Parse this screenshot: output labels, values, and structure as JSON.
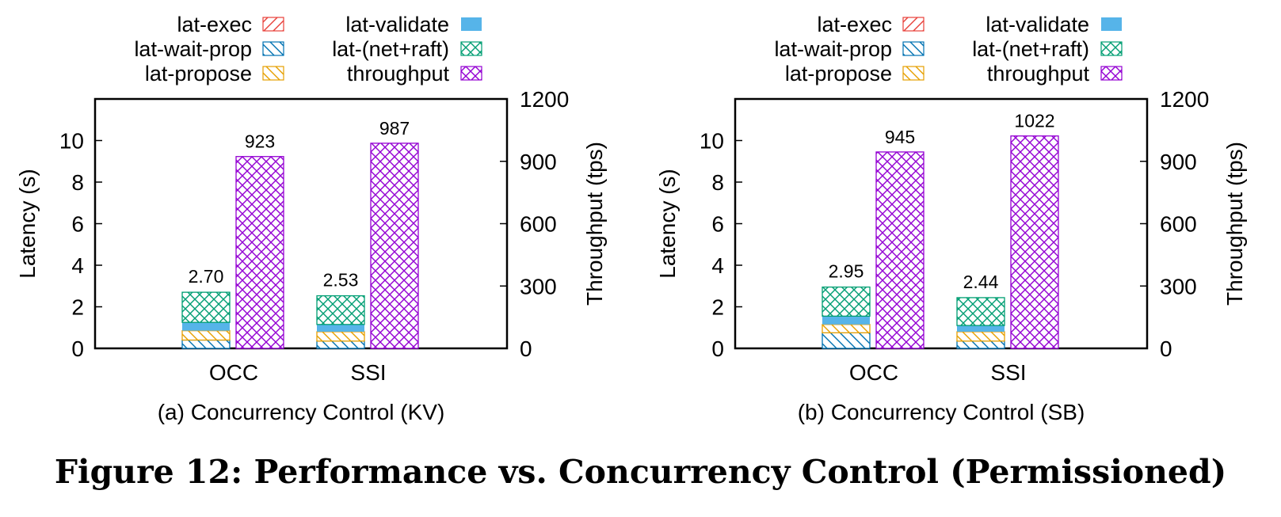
{
  "figure_caption": "Figure 12: Performance vs. Concurrency Control (Permissioned)",
  "legend": [
    {
      "key": "lat_exec",
      "label": "lat-exec",
      "color": "#e8403a",
      "pattern": "diag-right"
    },
    {
      "key": "lat_validate",
      "label": "lat-validate",
      "color": "#56b4e9",
      "pattern": "solid"
    },
    {
      "key": "lat_wait_prop",
      "label": "lat-wait-prop",
      "color": "#0072b2",
      "pattern": "diag-left"
    },
    {
      "key": "lat_net_raft",
      "label": "lat-(net+raft)",
      "color": "#009e73",
      "pattern": "crosshatch"
    },
    {
      "key": "lat_propose",
      "label": "lat-propose",
      "color": "#e69f00",
      "pattern": "diag-left"
    },
    {
      "key": "throughput",
      "label": "throughput",
      "color": "#9400d3",
      "pattern": "crosshatch"
    }
  ],
  "chart_data": [
    {
      "type": "bar",
      "subcaption": "(a) Concurrency Control (KV)",
      "categories": [
        "OCC",
        "SSI"
      ],
      "ylabel": "Latency (s)",
      "y2label": "Throughput (tps)",
      "ylim": [
        0,
        12
      ],
      "y2lim": [
        0,
        1200
      ],
      "yticks": [
        0,
        2,
        4,
        6,
        8,
        10
      ],
      "y2ticks": [
        0,
        300,
        600,
        900,
        1200
      ],
      "latency_series": [
        {
          "name": "lat-wait-prop",
          "values": [
            0.4,
            0.35
          ]
        },
        {
          "name": "lat-propose",
          "values": [
            0.45,
            0.45
          ]
        },
        {
          "name": "lat-exec",
          "values": [
            0.0,
            0.0
          ]
        },
        {
          "name": "lat-validate",
          "values": [
            0.4,
            0.35
          ]
        },
        {
          "name": "lat-(net+raft)",
          "values": [
            1.45,
            1.38
          ]
        }
      ],
      "latency_total": [
        2.7,
        2.53
      ],
      "latency_labels": [
        "2.70",
        "2.53"
      ],
      "throughput": [
        923,
        987
      ],
      "throughput_labels": [
        "923",
        "987"
      ]
    },
    {
      "type": "bar",
      "subcaption": "(b) Concurrency Control (SB)",
      "categories": [
        "OCC",
        "SSI"
      ],
      "ylabel": "Latency (s)",
      "y2label": "Throughput (tps)",
      "ylim": [
        0,
        12
      ],
      "y2lim": [
        0,
        1200
      ],
      "yticks": [
        0,
        2,
        4,
        6,
        8,
        10
      ],
      "y2ticks": [
        0,
        300,
        600,
        900,
        1200
      ],
      "latency_series": [
        {
          "name": "lat-wait-prop",
          "values": [
            0.75,
            0.35
          ]
        },
        {
          "name": "lat-propose",
          "values": [
            0.4,
            0.45
          ]
        },
        {
          "name": "lat-exec",
          "values": [
            0.0,
            0.0
          ]
        },
        {
          "name": "lat-validate",
          "values": [
            0.4,
            0.3
          ]
        },
        {
          "name": "lat-(net+raft)",
          "values": [
            1.4,
            1.34
          ]
        }
      ],
      "latency_total": [
        2.95,
        2.44
      ],
      "latency_labels": [
        "2.95",
        "2.44"
      ],
      "throughput": [
        945,
        1022
      ],
      "throughput_labels": [
        "945",
        "1022"
      ]
    }
  ]
}
